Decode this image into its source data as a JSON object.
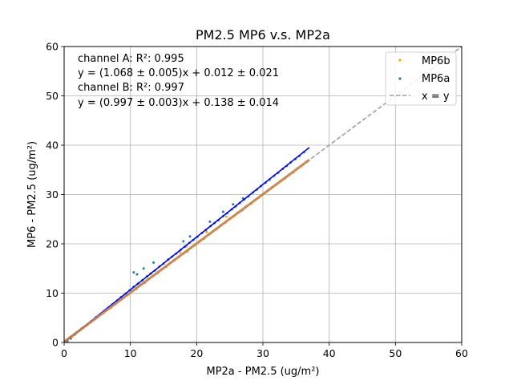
{
  "chart_data": {
    "type": "scatter",
    "title": "PM2.5 MP6 v.s. MP2a",
    "xlabel": "MP2a - PM2.5 (ug/m²)",
    "ylabel": "MP6 - PM2.5 (ug/m²)",
    "xlim": [
      0,
      60
    ],
    "ylim": [
      0,
      60
    ],
    "xticks": [
      "0",
      "10",
      "20",
      "30",
      "40",
      "50",
      "60"
    ],
    "yticks": [
      "0",
      "10",
      "20",
      "30",
      "40",
      "50",
      "60"
    ],
    "grid": true,
    "legend_position": "top-right",
    "annotations": [
      "channel A: R²: 0.995",
      "y = (1.068 ± 0.005)x + 0.012 ± 0.021",
      "channel B: R²: 0.997",
      "y = (0.997 ± 0.003)x + 0.138 ± 0.014"
    ],
    "series": [
      {
        "name": "MP6b",
        "kind": "scatter",
        "color": "#ffa500",
        "x": [
          0.3,
          0.8,
          1.2,
          1.9,
          2.6,
          3.2,
          3.9,
          4.5,
          5.1,
          5.8,
          6.4,
          7.0,
          7.7,
          8.3,
          9.0,
          9.6,
          10.2,
          10.9,
          11.5,
          12.2,
          12.8,
          13.4,
          14.1,
          14.7,
          15.4,
          16.0,
          16.6,
          17.3,
          17.9,
          18.6,
          19.2,
          19.8,
          20.5,
          21.1,
          21.8,
          22.4,
          23.0,
          23.7,
          24.3,
          25.0,
          25.6,
          26.2,
          26.9,
          27.5,
          28.2,
          28.8,
          29.4,
          30.1,
          30.7,
          31.4,
          32.0,
          32.6,
          33.3,
          33.9,
          34.6,
          35.2,
          35.8,
          36.5,
          11.0,
          13.0,
          17.5,
          18.5,
          21.5,
          24.5
        ],
        "y": [
          0.5,
          1.0,
          1.2,
          2.0,
          2.8,
          3.3,
          4.0,
          4.6,
          5.2,
          5.9,
          6.5,
          7.0,
          7.8,
          8.4,
          9.1,
          9.6,
          10.3,
          10.8,
          11.6,
          12.1,
          12.9,
          13.5,
          14.0,
          14.8,
          15.3,
          16.1,
          16.7,
          17.3,
          18.0,
          18.5,
          19.3,
          19.8,
          20.6,
          21.0,
          21.9,
          22.5,
          23.0,
          23.8,
          24.3,
          25.1,
          25.6,
          26.3,
          26.8,
          27.6,
          28.1,
          28.9,
          29.4,
          30.2,
          30.7,
          31.5,
          32.0,
          32.7,
          33.2,
          34.0,
          34.5,
          35.3,
          35.8,
          36.6,
          11.8,
          13.9,
          18.3,
          19.5,
          22.4,
          25.5
        ]
      },
      {
        "name": "MP6a",
        "kind": "scatter",
        "color": "#1f77b4",
        "x": [
          0.5,
          1.0,
          1.6,
          2.2,
          2.9,
          3.5,
          4.1,
          4.8,
          5.4,
          6.1,
          6.7,
          7.3,
          8.0,
          8.6,
          9.3,
          9.9,
          10.5,
          11.2,
          11.8,
          12.5,
          13.1,
          13.7,
          14.4,
          15.0,
          15.7,
          16.3,
          16.9,
          17.6,
          18.2,
          18.9,
          19.5,
          20.1,
          20.8,
          21.4,
          22.1,
          22.7,
          23.3,
          24.0,
          24.6,
          25.3,
          25.9,
          26.5,
          27.2,
          27.8,
          28.5,
          29.1,
          29.7,
          30.4,
          31.0,
          31.7,
          32.3,
          33.0,
          33.6,
          34.2,
          34.9,
          35.5,
          36.2,
          10.5,
          11.0,
          12.0,
          13.5,
          18.0,
          19.0,
          22.0,
          24.0,
          25.5,
          27.0
        ],
        "y": [
          0.3,
          0.8,
          1.6,
          2.3,
          3.0,
          3.6,
          4.3,
          5.1,
          5.7,
          6.4,
          7.1,
          7.7,
          8.5,
          9.2,
          9.9,
          10.6,
          11.3,
          12.0,
          12.6,
          13.4,
          14.0,
          14.6,
          15.4,
          16.0,
          16.8,
          17.4,
          18.0,
          18.8,
          19.4,
          20.2,
          20.8,
          21.4,
          22.2,
          22.8,
          23.6,
          24.2,
          24.8,
          25.6,
          26.2,
          27.0,
          27.6,
          28.3,
          29.0,
          29.6,
          30.4,
          31.0,
          31.7,
          32.4,
          33.0,
          33.8,
          34.4,
          35.2,
          35.8,
          36.5,
          37.2,
          37.8,
          38.6,
          14.2,
          13.8,
          15.0,
          16.2,
          20.5,
          21.5,
          24.5,
          26.5,
          28.0,
          29.2
        ]
      },
      {
        "name": "",
        "kind": "fit-line",
        "color": "#0000ff",
        "x": [
          0,
          37
        ],
        "y": [
          0.012,
          39.528
        ]
      },
      {
        "name": "",
        "kind": "fit-line",
        "color": "#c8824a",
        "x": [
          0,
          37
        ],
        "y": [
          0.138,
          37.027
        ]
      },
      {
        "name": "x = y",
        "kind": "reference-line",
        "color": "#a0a0a0",
        "x": [
          0,
          60
        ],
        "y": [
          0,
          60
        ]
      }
    ]
  }
}
